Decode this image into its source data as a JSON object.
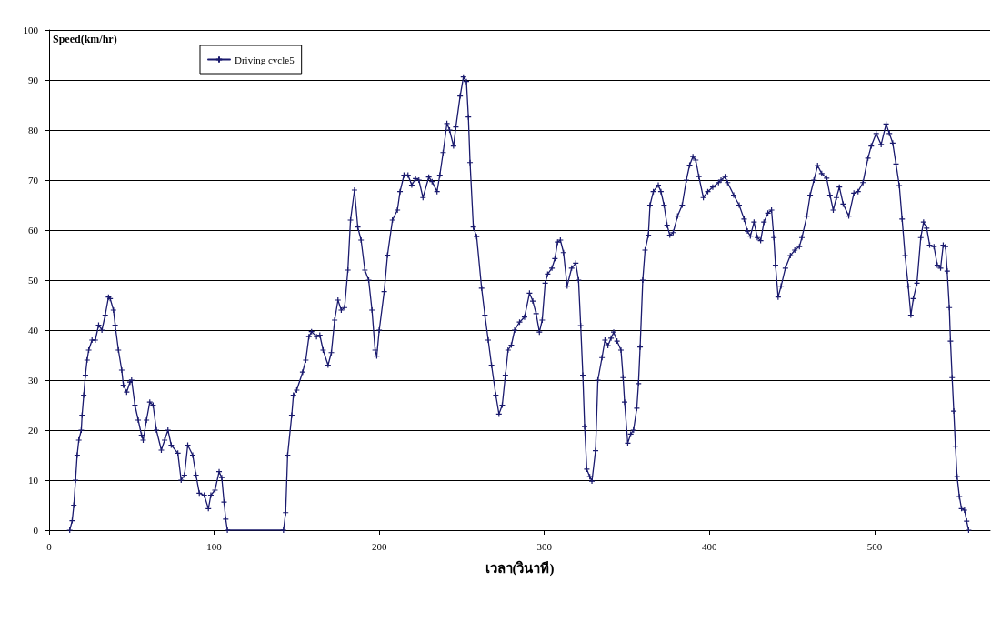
{
  "chart_data": {
    "type": "line",
    "xlabel": "เวลา(วินาที)",
    "ylabel": "Speed(km/hr)",
    "xlim": [
      0,
      570
    ],
    "xticks": [
      0,
      100,
      200,
      300,
      400,
      500
    ],
    "ylim": [
      0,
      100
    ],
    "yticks": [
      0,
      10,
      20,
      30,
      40,
      50,
      60,
      70,
      80,
      90,
      100
    ],
    "grid": "y",
    "legend": "top left",
    "marker": "cross",
    "line_style": "solid",
    "series": [
      {
        "name": "Driving cycle5",
        "color": "#1a1a6e",
        "x": [
          12.5,
          14,
          15,
          16,
          17,
          18,
          19.5,
          20,
          21,
          22,
          23,
          24,
          26,
          28,
          30,
          32,
          34,
          36,
          37,
          39,
          40,
          42,
          44,
          45,
          47,
          49,
          50,
          52,
          54,
          56,
          57,
          59,
          61,
          63,
          65,
          68,
          70,
          72,
          74,
          78,
          80,
          82,
          84,
          87,
          89,
          91,
          94,
          96.5,
          98,
          100.5,
          103,
          104.6,
          106,
          107,
          108,
          142,
          143.3,
          144.5,
          147,
          148,
          150,
          153.6,
          155.5,
          157.4,
          159,
          162,
          164,
          166,
          169,
          171,
          173,
          175,
          177,
          179,
          181,
          182.6,
          185,
          187,
          189,
          191.3,
          193.6,
          195.6,
          197.5,
          198.5,
          200,
          203,
          205,
          208,
          211,
          212.6,
          215,
          217.4,
          219.7,
          222,
          224,
          226.5,
          230,
          232,
          235,
          236.7,
          238.7,
          241,
          242.6,
          245,
          246.4,
          249,
          251,
          252.8,
          254,
          255,
          257,
          259,
          262,
          264,
          266,
          268,
          270.6,
          272.5,
          274.5,
          276.4,
          278,
          280,
          282,
          285,
          288,
          291,
          293,
          295,
          297,
          298.7,
          300.5,
          302,
          304.6,
          306.4,
          308,
          309.7,
          311.6,
          313.8,
          316.5,
          319,
          320.7,
          322,
          323.3,
          324.4,
          325.7,
          327.5,
          328.8,
          331,
          332.4,
          334.9,
          336.7,
          338.5,
          340.4,
          342,
          344,
          346.4,
          347.7,
          348.6,
          350.5,
          352.3,
          354,
          356,
          357,
          358,
          359.6,
          361,
          363,
          364,
          366,
          369,
          370.6,
          372.5,
          374.3,
          376,
          378,
          380.7,
          383.5,
          386,
          388,
          390,
          391.7,
          393.6,
          396.3,
          399,
          402,
          405.5,
          407,
          409.5,
          411,
          414.7,
          418,
          421,
          423,
          424.8,
          427,
          429,
          431,
          433,
          435.4,
          437.6,
          439,
          440,
          441.6,
          443.4,
          446,
          449,
          451.7,
          454.5,
          456,
          459,
          461,
          463.3,
          465.5,
          468,
          471,
          473,
          475,
          476.9,
          478.7,
          481,
          484.4,
          487.5,
          490,
          493,
          496,
          498,
          501,
          504,
          507,
          509,
          511,
          513,
          515,
          516.7,
          518.5,
          520.4,
          522,
          523.5,
          525.7,
          528,
          529.7,
          531.6,
          533.4,
          536,
          538,
          540,
          541.6,
          543,
          544,
          545.3,
          546,
          547,
          548,
          549,
          550,
          551.4,
          552.7,
          554.5,
          555.8,
          557
        ],
        "values": [
          0,
          1.9,
          5,
          10,
          15,
          18,
          20,
          23,
          27,
          31,
          34,
          36,
          38,
          38,
          41,
          40,
          43,
          46.6,
          46.3,
          44,
          41,
          36,
          32,
          29,
          27.6,
          29.6,
          30,
          25,
          22,
          19,
          18,
          22,
          25.6,
          25,
          20,
          16,
          18,
          20,
          17,
          15.4,
          10,
          11,
          17,
          15,
          11,
          7.4,
          7,
          4.3,
          7,
          8,
          11.7,
          10.5,
          5.6,
          2.2,
          0,
          0,
          3.5,
          15,
          23,
          27,
          28,
          31.6,
          34,
          38.7,
          39.7,
          38.7,
          39,
          36,
          33,
          35.5,
          42,
          46,
          44,
          44.5,
          52,
          62,
          68,
          60.6,
          58,
          52,
          50,
          44,
          36,
          34.8,
          40,
          47.7,
          55,
          62,
          64,
          67.7,
          71,
          71,
          69,
          70.3,
          70,
          66.5,
          70.6,
          69.7,
          67.7,
          71,
          75.5,
          81.3,
          80,
          76.8,
          80.6,
          86.8,
          90.6,
          89.7,
          82.6,
          73.5,
          60.6,
          58.7,
          48.4,
          43,
          38,
          33,
          27,
          23.2,
          25,
          31,
          36,
          37,
          40,
          41.6,
          42.6,
          47.4,
          45.8,
          43.3,
          39.6,
          42,
          49.4,
          51.2,
          52.4,
          54.3,
          57.6,
          58,
          55.5,
          48.8,
          52.4,
          53.4,
          50,
          40.9,
          31,
          20.7,
          12.2,
          10.7,
          9.8,
          15.9,
          30,
          34.5,
          38,
          36.9,
          38.4,
          39.6,
          37.8,
          36,
          30.5,
          25.6,
          17.4,
          19.2,
          20,
          24.4,
          29.3,
          36.6,
          50,
          56,
          59,
          65,
          67.7,
          69,
          67.7,
          65,
          61,
          59,
          59.5,
          62.8,
          65,
          70,
          73,
          74.7,
          74,
          70.7,
          66.5,
          67.7,
          68.6,
          69.5,
          70,
          70.7,
          69.5,
          67,
          65,
          62.2,
          59.8,
          58.8,
          61.6,
          58.5,
          57.9,
          61.6,
          63.4,
          64,
          58.5,
          53,
          46.6,
          48.8,
          52.4,
          54.9,
          56,
          56.7,
          58.5,
          62.8,
          67,
          70,
          72.9,
          71.3,
          70.4,
          67,
          64,
          66.5,
          68.6,
          65.2,
          62.8,
          67.4,
          67.7,
          69.5,
          74.4,
          76.8,
          79.3,
          77.1,
          81.2,
          79.3,
          77.4,
          73.2,
          68.9,
          62.2,
          54.9,
          48.8,
          43,
          46.3,
          49.4,
          58.5,
          61.6,
          60.4,
          57,
          56.7,
          53,
          52.4,
          57,
          56.7,
          51.8,
          44.5,
          37.8,
          30.5,
          23.8,
          16.8,
          10.7,
          6.7,
          4.3,
          4,
          1.8,
          0
        ]
      }
    ]
  }
}
